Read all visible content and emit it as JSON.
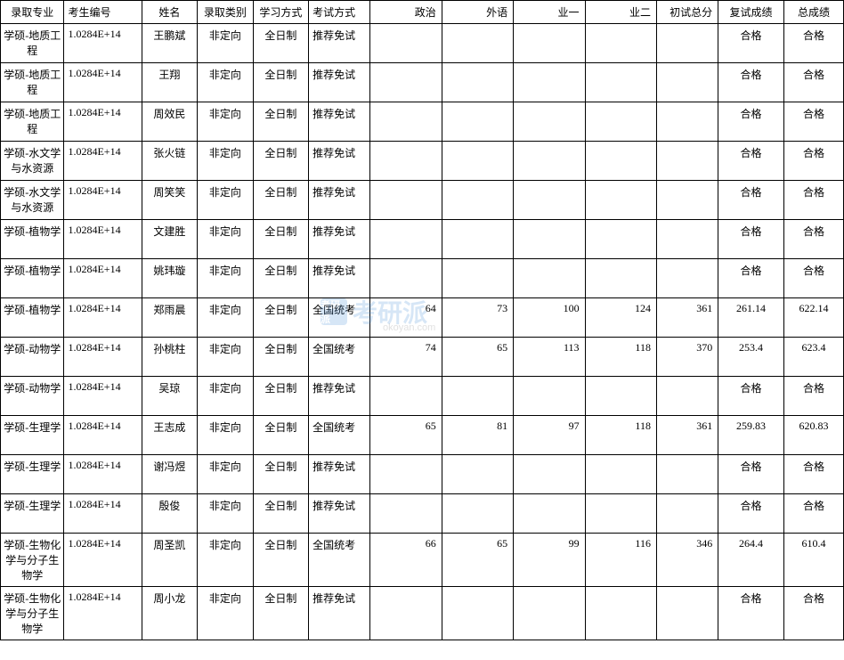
{
  "table": {
    "columns": [
      "录取专业",
      "考生编号",
      "姓名",
      "录取类别",
      "学习方式",
      "考试方式",
      "政治",
      "外语",
      "业一",
      "业二",
      "初试总分",
      "复试成绩",
      "总成绩"
    ],
    "col_classes": [
      "c0",
      "c1",
      "c2",
      "c3",
      "c4",
      "c5",
      "c6",
      "c7",
      "c8",
      "c9",
      "c10",
      "c11",
      "c12"
    ],
    "rows": [
      {
        "cells": [
          "学硕-地质工程",
          "1.0284E+14",
          "王鹏斌",
          "非定向",
          "全日制",
          "推荐免试",
          "",
          "",
          "",
          "",
          "",
          "合格",
          "合格"
        ],
        "tall": false
      },
      {
        "cells": [
          "学硕-地质工程",
          "1.0284E+14",
          "王翔",
          "非定向",
          "全日制",
          "推荐免试",
          "",
          "",
          "",
          "",
          "",
          "合格",
          "合格"
        ],
        "tall": false
      },
      {
        "cells": [
          "学硕-地质工程",
          "1.0284E+14",
          "周效民",
          "非定向",
          "全日制",
          "推荐免试",
          "",
          "",
          "",
          "",
          "",
          "合格",
          "合格"
        ],
        "tall": false
      },
      {
        "cells": [
          "学硕-水文学与水资源",
          "1.0284E+14",
          "张火链",
          "非定向",
          "全日制",
          "推荐免试",
          "",
          "",
          "",
          "",
          "",
          "合格",
          "合格"
        ],
        "tall": false
      },
      {
        "cells": [
          "学硕-水文学与水资源",
          "1.0284E+14",
          "周笑笑",
          "非定向",
          "全日制",
          "推荐免试",
          "",
          "",
          "",
          "",
          "",
          "合格",
          "合格"
        ],
        "tall": false
      },
      {
        "cells": [
          "学硕-植物学",
          "1.0284E+14",
          "文建胜",
          "非定向",
          "全日制",
          "推荐免试",
          "",
          "",
          "",
          "",
          "",
          "合格",
          "合格"
        ],
        "tall": false
      },
      {
        "cells": [
          "学硕-植物学",
          "1.0284E+14",
          "姚玮璇",
          "非定向",
          "全日制",
          "推荐免试",
          "",
          "",
          "",
          "",
          "",
          "合格",
          "合格"
        ],
        "tall": false
      },
      {
        "cells": [
          "学硕-植物学",
          "1.0284E+14",
          "郑雨晨",
          "非定向",
          "全日制",
          "全国统考",
          "64",
          "73",
          "100",
          "124",
          "361",
          "261.14",
          "622.14"
        ],
        "tall": false
      },
      {
        "cells": [
          "学硕-动物学",
          "1.0284E+14",
          "孙桃柱",
          "非定向",
          "全日制",
          "全国统考",
          "74",
          "65",
          "113",
          "118",
          "370",
          "253.4",
          "623.4"
        ],
        "tall": false
      },
      {
        "cells": [
          "学硕-动物学",
          "1.0284E+14",
          "吴琼",
          "非定向",
          "全日制",
          "推荐免试",
          "",
          "",
          "",
          "",
          "",
          "合格",
          "合格"
        ],
        "tall": false
      },
      {
        "cells": [
          "学硕-生理学",
          "1.0284E+14",
          "王志成",
          "非定向",
          "全日制",
          "全国统考",
          "65",
          "81",
          "97",
          "118",
          "361",
          "259.83",
          "620.83"
        ],
        "tall": false
      },
      {
        "cells": [
          "学硕-生理学",
          "1.0284E+14",
          "谢冯煜",
          "非定向",
          "全日制",
          "推荐免试",
          "",
          "",
          "",
          "",
          "",
          "合格",
          "合格"
        ],
        "tall": false
      },
      {
        "cells": [
          "学硕-生理学",
          "1.0284E+14",
          "殷俊",
          "非定向",
          "全日制",
          "推荐免试",
          "",
          "",
          "",
          "",
          "",
          "合格",
          "合格"
        ],
        "tall": false
      },
      {
        "cells": [
          "学硕-生物化学与分子生物学",
          "1.0284E+14",
          "周圣凯",
          "非定向",
          "全日制",
          "全国统考",
          "66",
          "65",
          "99",
          "116",
          "346",
          "264.4",
          "610.4"
        ],
        "tall": true
      },
      {
        "cells": [
          "学硕-生物化学与分子生物学",
          "1.0284E+14",
          "周小龙",
          "非定向",
          "全日制",
          "推荐免试",
          "",
          "",
          "",
          "",
          "",
          "合格",
          "合格"
        ],
        "tall": true
      }
    ]
  },
  "watermark": {
    "logo_text": "考研派",
    "main_text": "考研派",
    "sub_text": "okoyan.com",
    "main_color": "#4a90d9"
  }
}
